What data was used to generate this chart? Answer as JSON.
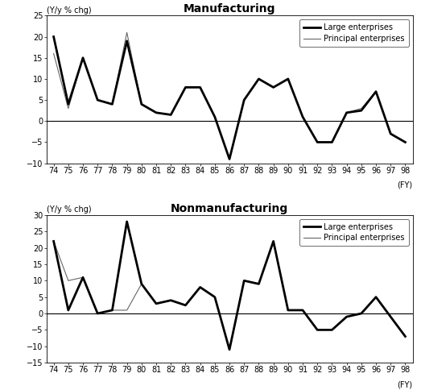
{
  "years": [
    74,
    75,
    76,
    77,
    78,
    79,
    80,
    81,
    82,
    83,
    84,
    85,
    86,
    87,
    88,
    89,
    90,
    91,
    92,
    93,
    94,
    95,
    96,
    97,
    98
  ],
  "mfg_large": [
    20,
    4,
    15,
    5,
    4,
    19,
    4,
    2,
    1.5,
    8,
    8,
    1,
    -9,
    5,
    10,
    8,
    10,
    1,
    -5,
    -5,
    2,
    2.5,
    7,
    -3,
    -5
  ],
  "mfg_principal": [
    16,
    3,
    15,
    5,
    4,
    21,
    4,
    2,
    1.5,
    8,
    8,
    1,
    -9,
    5,
    10,
    8,
    10,
    1,
    -5,
    -5,
    2,
    3,
    7,
    -3,
    -5
  ],
  "nonmfg_large": [
    22,
    1,
    11,
    0,
    1,
    28,
    9,
    3,
    4,
    2.5,
    8,
    5,
    -11,
    10,
    9,
    22,
    1,
    1,
    -5,
    -5,
    -1,
    0,
    5,
    -1,
    -7
  ],
  "nonmfg_principal": [
    22,
    10,
    11,
    0,
    1,
    1,
    9,
    3,
    4,
    2.5,
    8,
    5,
    -11,
    10,
    9,
    22,
    1,
    1,
    -5,
    -5,
    -1,
    0,
    5,
    -1,
    -7
  ],
  "mfg_ylim": [
    -10,
    25
  ],
  "mfg_yticks": [
    -10,
    -5,
    0,
    5,
    10,
    15,
    20,
    25
  ],
  "nonmfg_ylim": [
    -15,
    30
  ],
  "nonmfg_yticks": [
    -15,
    -10,
    -5,
    0,
    5,
    10,
    15,
    20,
    25,
    30
  ],
  "mfg_title": "Manufacturing",
  "nonmfg_title": "Nonmanufacturing",
  "ylabel": "(Y/y % chg)",
  "xlabel": "(FY)",
  "legend_large": "Large enterprises",
  "legend_principal": "Principal enterprises",
  "large_color": "#000000",
  "principal_color": "#666666",
  "large_lw": 2.0,
  "principal_lw": 0.8,
  "bg_color": "#ffffff",
  "tick_fontsize": 7,
  "title_fontsize": 10,
  "label_fontsize": 7,
  "legend_fontsize": 7
}
